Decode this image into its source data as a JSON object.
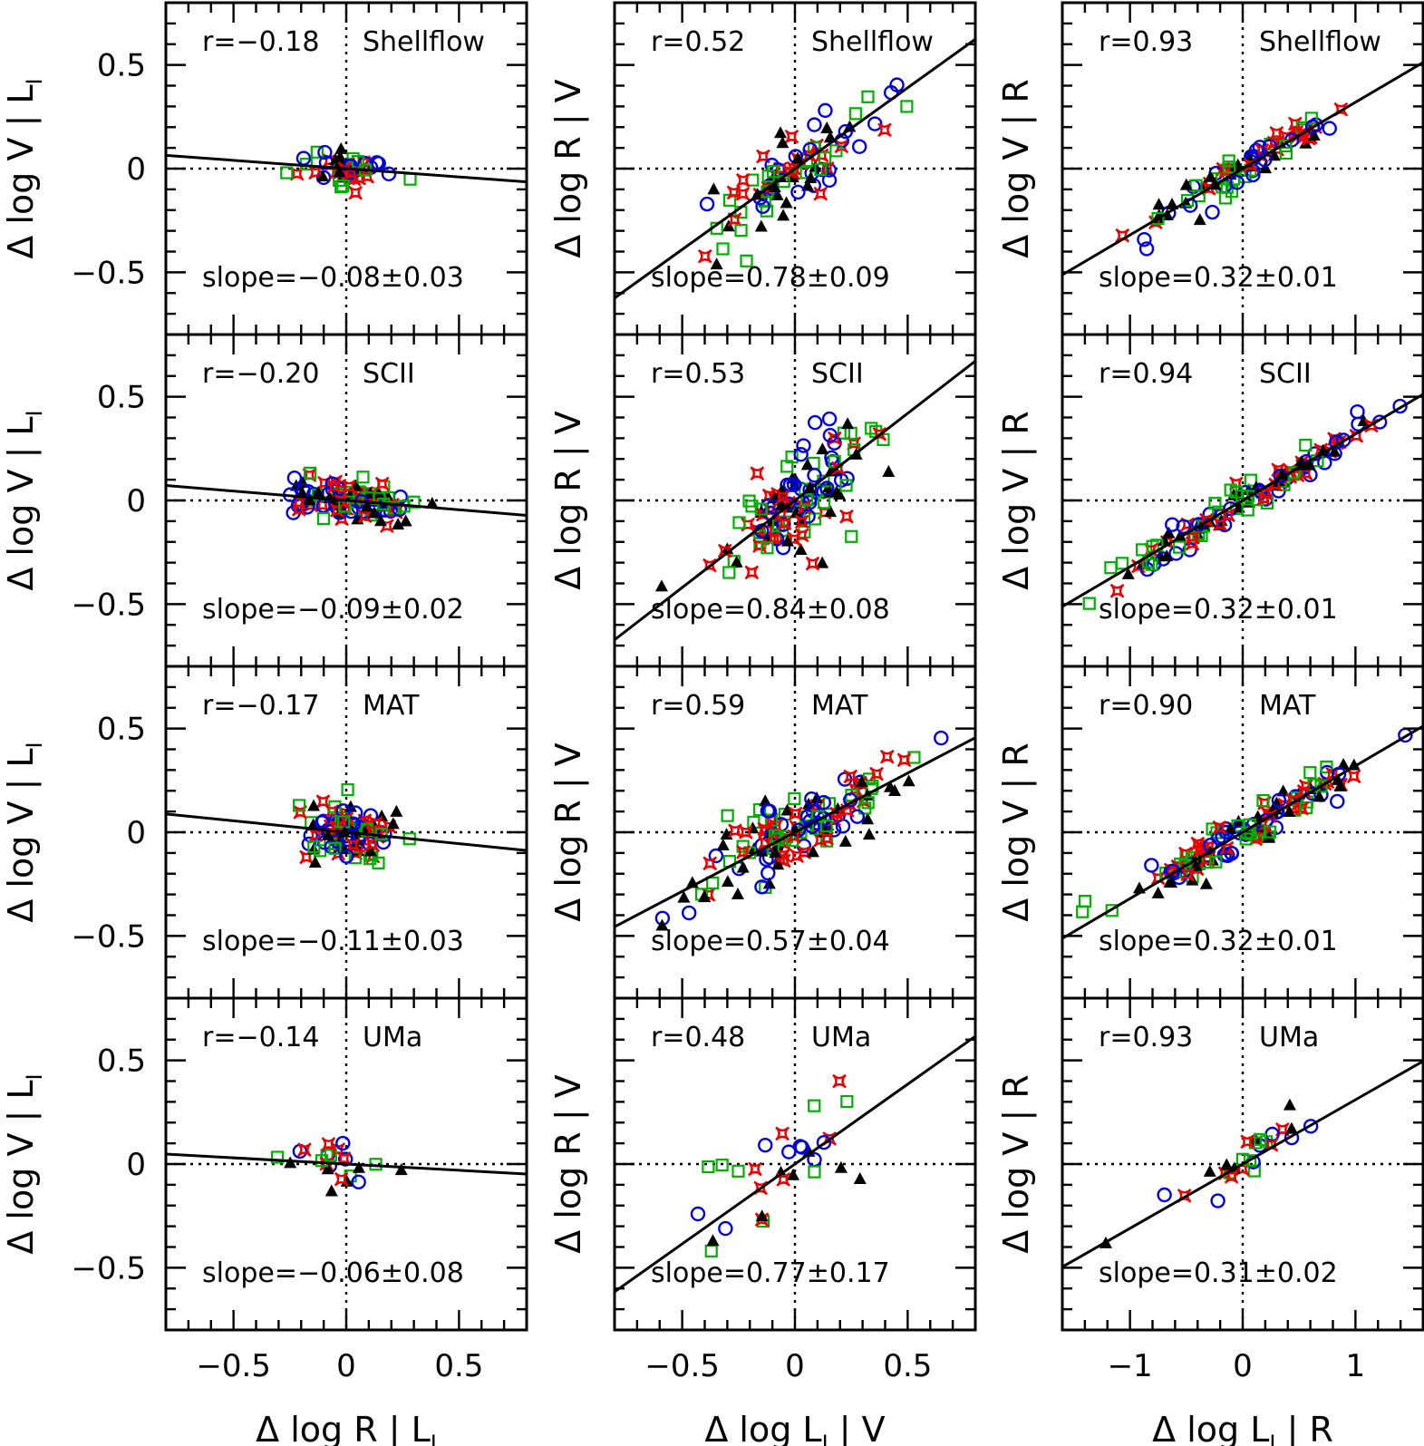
{
  "chart_data": {
    "type": "scatter",
    "layout": "4 rows x 3 columns",
    "samples": [
      "Shellflow",
      "SCII",
      "MAT",
      "UMa"
    ],
    "series_markers": [
      {
        "marker": "circle",
        "color": "#0000dd"
      },
      {
        "marker": "square",
        "color": "#00b000"
      },
      {
        "marker": "star",
        "color": "#ee0000"
      },
      {
        "marker": "triangle",
        "color": "#000000"
      }
    ],
    "columns": [
      {
        "xlabel": "Δ log R | L",
        "xlabel_sub": "I",
        "ylabel": "Δ log V | L",
        "ylabel_sub": "I",
        "xlim": [
          -0.8,
          0.8
        ],
        "ylim": [
          -0.8,
          0.8
        ],
        "xticks": [
          -0.5,
          0,
          0.5
        ],
        "xtick_labels": [
          "−0.5",
          "0",
          "0.5"
        ],
        "yticks": [
          -0.5,
          0,
          0.5
        ],
        "ytick_labels": [
          "−0.5",
          "0",
          "0.5"
        ],
        "ref_x": 0,
        "ref_y": 0
      },
      {
        "xlabel": "Δ log L",
        "xlabel_sub": "I",
        "xlabel_tail": " | V",
        "ylabel": "Δ log R | V",
        "xlim": [
          -0.8,
          0.8
        ],
        "ylim": [
          -0.8,
          0.8
        ],
        "xticks": [
          -0.5,
          0,
          0.5
        ],
        "xtick_labels": [
          "−0.5",
          "0",
          "0.5"
        ],
        "ref_x": 0,
        "ref_y": 0
      },
      {
        "xlabel": "Δ log L",
        "xlabel_sub": "I",
        "xlabel_tail": " | R",
        "ylabel": "Δ log V | R",
        "xlim": [
          -1.6,
          1.6
        ],
        "ylim": [
          -0.8,
          0.8
        ],
        "xticks": [
          -1,
          0,
          1
        ],
        "xtick_labels": [
          "−1",
          "0",
          "1"
        ],
        "ref_x": 0,
        "ref_y": 0
      }
    ],
    "panels": [
      [
        {
          "sample": "Shellflow",
          "r_label": "r=−0.18",
          "slope_label": "slope=−0.08±0.03",
          "slope": -0.08,
          "n": 55,
          "xs": 0.1,
          "ys": 0.045
        },
        {
          "sample": "Shellflow",
          "r_label": "r=0.52",
          "slope_label": "slope=0.78±0.09",
          "slope": 0.78,
          "n": 90,
          "xs": 0.18,
          "ys": 0.1
        },
        {
          "sample": "Shellflow",
          "r_label": "r=0.93",
          "slope_label": "slope=0.32±0.01",
          "slope": 0.32,
          "n": 90,
          "xs": 0.45,
          "ys": 0.04
        }
      ],
      [
        {
          "sample": "SCII",
          "r_label": "r=−0.20",
          "slope_label": "slope=−0.09±0.02",
          "slope": -0.09,
          "n": 110,
          "xs": 0.14,
          "ys": 0.05
        },
        {
          "sample": "SCII",
          "r_label": "r=0.53",
          "slope_label": "slope=0.84±0.08",
          "slope": 0.84,
          "n": 130,
          "xs": 0.17,
          "ys": 0.12
        },
        {
          "sample": "SCII",
          "r_label": "r=0.94",
          "slope_label": "slope=0.32±0.01",
          "slope": 0.32,
          "n": 130,
          "xs": 0.55,
          "ys": 0.04
        }
      ],
      [
        {
          "sample": "MAT",
          "r_label": "r=−0.17",
          "slope_label": "slope=−0.11±0.03",
          "slope": -0.11,
          "n": 110,
          "xs": 0.12,
          "ys": 0.07
        },
        {
          "sample": "MAT",
          "r_label": "r=0.59",
          "slope_label": "slope=0.57±0.04",
          "slope": 0.57,
          "n": 140,
          "xs": 0.22,
          "ys": 0.1
        },
        {
          "sample": "MAT",
          "r_label": "r=0.90",
          "slope_label": "slope=0.32±0.01",
          "slope": 0.32,
          "n": 140,
          "xs": 0.5,
          "ys": 0.05
        }
      ],
      [
        {
          "sample": "UMa",
          "r_label": "r=−0.14",
          "slope_label": "slope=−0.06±0.08",
          "slope": -0.06,
          "n": 24,
          "xs": 0.14,
          "ys": 0.05
        },
        {
          "sample": "UMa",
          "r_label": "r=0.48",
          "slope_label": "slope=0.77±0.17",
          "slope": 0.77,
          "n": 30,
          "xs": 0.22,
          "ys": 0.14
        },
        {
          "sample": "UMa",
          "r_label": "r=0.93",
          "slope_label": "slope=0.31±0.02",
          "slope": 0.31,
          "n": 28,
          "xs": 0.45,
          "ys": 0.05
        }
      ]
    ]
  }
}
